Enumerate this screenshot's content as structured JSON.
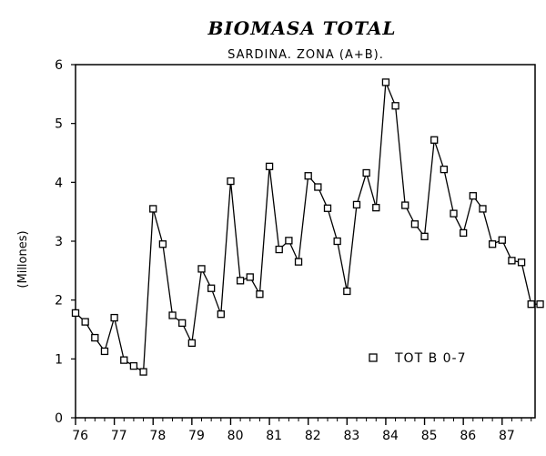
{
  "chart_data": {
    "type": "line",
    "title": "BIOMASA TOTAL",
    "subtitle": "SARDINA. ZONA (A+B).",
    "xlabel": "",
    "ylabel": "(Millones)",
    "xlim": [
      76.0,
      87.85
    ],
    "ylim": [
      0,
      6
    ],
    "yticks": [
      0,
      1,
      2,
      3,
      4,
      5,
      6
    ],
    "xticks": [
      "76",
      "77",
      "78",
      "79",
      "80",
      "81",
      "82",
      "83",
      "84",
      "85",
      "86",
      "87"
    ],
    "legend_position": "bottom-right",
    "series": [
      {
        "name": "TOT B 0-7",
        "marker": "open-square",
        "x": [
          76.0,
          76.25,
          76.5,
          76.75,
          77.0,
          77.25,
          77.5,
          77.75,
          78.0,
          78.25,
          78.5,
          78.75,
          79.0,
          79.25,
          79.5,
          79.75,
          80.0,
          80.25,
          80.5,
          80.75,
          81.0,
          81.25,
          81.5,
          81.75,
          82.0,
          82.25,
          82.5,
          82.75,
          83.0,
          83.25,
          83.5,
          83.75,
          84.0,
          84.25,
          84.5,
          84.75,
          85.0,
          85.25,
          85.5,
          85.75,
          86.0,
          86.25,
          86.5,
          86.75,
          87.0,
          87.25,
          87.5,
          87.75,
          87.98
        ],
        "values": [
          1.78,
          1.63,
          1.36,
          1.13,
          1.7,
          0.98,
          0.88,
          0.78,
          3.55,
          2.95,
          1.74,
          1.61,
          1.27,
          2.53,
          2.2,
          1.76,
          4.02,
          2.33,
          2.39,
          2.1,
          4.27,
          2.86,
          3.01,
          2.65,
          4.11,
          3.92,
          3.56,
          3.0,
          2.15,
          3.62,
          4.16,
          3.57,
          5.7,
          5.3,
          3.61,
          3.29,
          3.08,
          4.72,
          4.22,
          3.47,
          3.14,
          3.77,
          3.55,
          2.95,
          3.02,
          2.67,
          2.64,
          1.93,
          1.93
        ]
      }
    ]
  }
}
